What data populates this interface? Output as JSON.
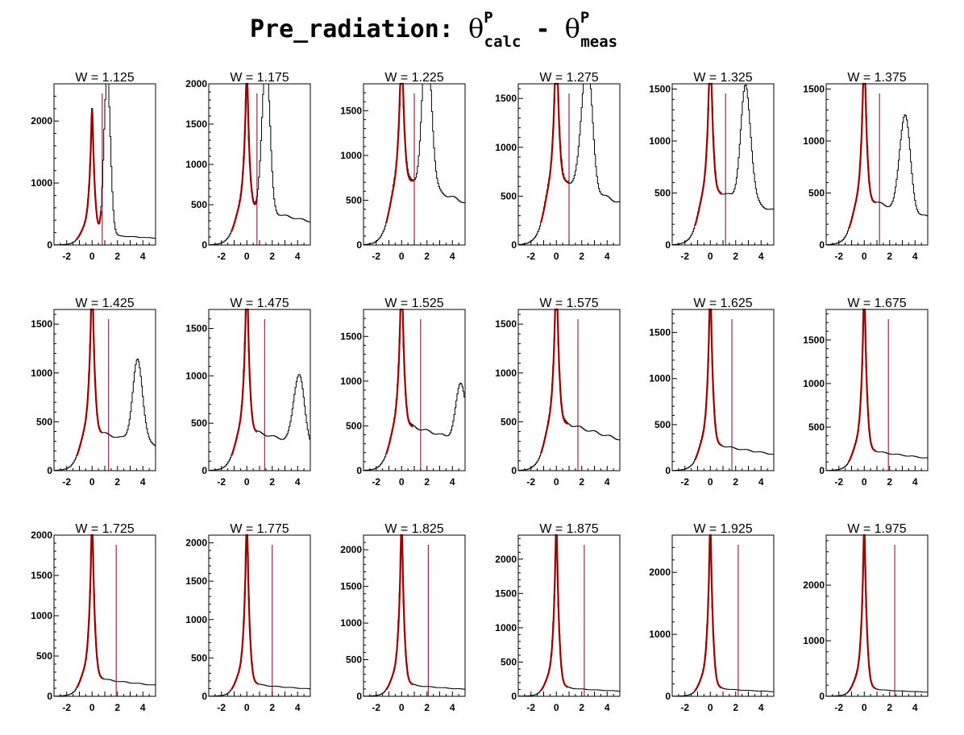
{
  "title": {
    "prefix": "Pre_radiation: ",
    "theta1": "θ",
    "sup1": "P",
    "sub1": "calc",
    "minus": " - ",
    "theta2": "θ",
    "sup2": "P",
    "sub2": "meas"
  },
  "chart_data": [
    {
      "type": "histogram",
      "title": "W = 1.125",
      "xlim": [
        -3,
        5
      ],
      "ylim": [
        0,
        2600
      ],
      "xticks": [
        -2,
        0,
        2,
        4
      ],
      "yticks": [
        0,
        1000,
        2000
      ],
      "cut": 0.8,
      "peak1": 1900,
      "peak2": {
        "x": 1.2,
        "h": 2600,
        "w": 0.25
      },
      "bg": 160,
      "fit_end": 0.7
    },
    {
      "type": "histogram",
      "title": "W = 1.175",
      "xlim": [
        -3,
        5
      ],
      "ylim": [
        0,
        2000
      ],
      "xticks": [
        -2,
        0,
        2,
        4
      ],
      "yticks": [
        0,
        500,
        1000,
        1500,
        2000
      ],
      "cut": 0.8,
      "peak1": 1700,
      "peak2": {
        "x": 1.5,
        "h": 1960,
        "w": 0.3
      },
      "bg": 430,
      "fit_end": 0.8
    },
    {
      "type": "histogram",
      "title": "W = 1.225",
      "xlim": [
        -3,
        5
      ],
      "ylim": [
        0,
        1800
      ],
      "xticks": [
        -2,
        0,
        2,
        4
      ],
      "yticks": [
        0,
        500,
        1000,
        1500
      ],
      "cut": 1.0,
      "peak1": 1650,
      "peak2": {
        "x": 2.0,
        "h": 1750,
        "w": 0.35
      },
      "bg": 700,
      "fit_end": 1.0
    },
    {
      "type": "histogram",
      "title": "W = 1.275",
      "xlim": [
        -3,
        5
      ],
      "ylim": [
        0,
        1650
      ],
      "xticks": [
        -2,
        0,
        2,
        4
      ],
      "yticks": [
        0,
        500,
        1000,
        1500
      ],
      "cut": 1.0,
      "peak1": 1600,
      "peak2": {
        "x": 2.4,
        "h": 1380,
        "w": 0.4
      },
      "bg": 640,
      "fit_end": 1.0
    },
    {
      "type": "histogram",
      "title": "W = 1.325",
      "xlim": [
        -3,
        5
      ],
      "ylim": [
        0,
        1550
      ],
      "xticks": [
        -2,
        0,
        2,
        4
      ],
      "yticks": [
        0,
        500,
        1000,
        1500
      ],
      "cut": 1.2,
      "peak1": 1510,
      "peak2": {
        "x": 2.8,
        "h": 1090,
        "w": 0.4
      },
      "bg": 490,
      "fit_end": 0.9
    },
    {
      "type": "histogram",
      "title": "W = 1.375",
      "xlim": [
        -3,
        5
      ],
      "ylim": [
        0,
        1550
      ],
      "xticks": [
        -2,
        0,
        2,
        4
      ],
      "yticks": [
        0,
        500,
        1000,
        1500
      ],
      "cut": 1.2,
      "peak1": 1510,
      "peak2": {
        "x": 3.2,
        "h": 950,
        "w": 0.4
      },
      "bg": 400,
      "fit_end": 0.9
    },
    {
      "type": "histogram",
      "title": "W = 1.425",
      "xlim": [
        -3,
        5
      ],
      "ylim": [
        0,
        1650
      ],
      "xticks": [
        -2,
        0,
        2,
        4
      ],
      "yticks": [
        0,
        500,
        1000,
        1500
      ],
      "cut": 1.3,
      "peak1": 1580,
      "peak2": {
        "x": 3.6,
        "h": 820,
        "w": 0.4
      },
      "bg": 370,
      "fit_end": 0.8
    },
    {
      "type": "histogram",
      "title": "W = 1.475",
      "xlim": [
        -3,
        5
      ],
      "ylim": [
        0,
        1700
      ],
      "xticks": [
        -2,
        0,
        2,
        4
      ],
      "yticks": [
        0,
        500,
        1000,
        1500
      ],
      "cut": 1.4,
      "peak1": 1650,
      "peak2": {
        "x": 4.1,
        "h": 740,
        "w": 0.4
      },
      "bg": 390,
      "fit_end": 0.8
    },
    {
      "type": "histogram",
      "title": "W = 1.525",
      "xlim": [
        -3,
        5
      ],
      "ylim": [
        0,
        1800
      ],
      "xticks": [
        -2,
        0,
        2,
        4
      ],
      "yticks": [
        0,
        500,
        1000,
        1500
      ],
      "cut": 1.5,
      "peak1": 1760,
      "peak2": {
        "x": 4.7,
        "h": 640,
        "w": 0.4
      },
      "bg": 480,
      "fit_end": 0.9
    },
    {
      "type": "histogram",
      "title": "W = 1.575",
      "xlim": [
        -3,
        5
      ],
      "ylim": [
        0,
        1650
      ],
      "xticks": [
        -2,
        0,
        2,
        4
      ],
      "yticks": [
        0,
        500,
        1000,
        1500
      ],
      "cut": 1.7,
      "peak1": 1600,
      "peak2": null,
      "bg": 470,
      "fit_end": 0.9
    },
    {
      "type": "histogram",
      "title": "W = 1.625",
      "xlim": [
        -3,
        5
      ],
      "ylim": [
        0,
        1750
      ],
      "xticks": [
        -2,
        0,
        2,
        4
      ],
      "yticks": [
        0,
        500,
        1000,
        1500
      ],
      "cut": 1.7,
      "peak1": 1680,
      "peak2": null,
      "bg": 260,
      "fit_end": 0.9
    },
    {
      "type": "histogram",
      "title": "W = 1.675",
      "xlim": [
        -3,
        5
      ],
      "ylim": [
        0,
        1850
      ],
      "xticks": [
        -2,
        0,
        2,
        4
      ],
      "yticks": [
        0,
        500,
        1000,
        1500
      ],
      "cut": 1.9,
      "peak1": 1800,
      "peak2": null,
      "bg": 210,
      "fit_end": 0.9
    },
    {
      "type": "histogram",
      "title": "W = 1.725",
      "xlim": [
        -3,
        5
      ],
      "ylim": [
        0,
        2000
      ],
      "xticks": [
        -2,
        0,
        2,
        4
      ],
      "yticks": [
        0,
        500,
        1000,
        1500,
        2000
      ],
      "cut": 1.9,
      "peak1": 1900,
      "peak2": null,
      "bg": 200,
      "fit_end": 0.9
    },
    {
      "type": "histogram",
      "title": "W = 1.775",
      "xlim": [
        -3,
        5
      ],
      "ylim": [
        0,
        2100
      ],
      "xticks": [
        -2,
        0,
        2,
        4
      ],
      "yticks": [
        0,
        500,
        1000,
        1500,
        2000
      ],
      "cut": 2.0,
      "peak1": 2030,
      "peak2": null,
      "bg": 140,
      "fit_end": 0.9
    },
    {
      "type": "histogram",
      "title": "W = 1.825",
      "xlim": [
        -3,
        5
      ],
      "ylim": [
        0,
        2200
      ],
      "xticks": [
        -2,
        0,
        2,
        4
      ],
      "yticks": [
        0,
        500,
        1000,
        1500,
        2000
      ],
      "cut": 2.1,
      "peak1": 2100,
      "peak2": null,
      "bg": 140,
      "fit_end": 0.9
    },
    {
      "type": "histogram",
      "title": "W = 1.875",
      "xlim": [
        -3,
        5
      ],
      "ylim": [
        0,
        2350
      ],
      "xticks": [
        -2,
        0,
        2,
        4
      ],
      "yticks": [
        0,
        500,
        1000,
        1500,
        2000
      ],
      "cut": 2.2,
      "peak1": 2260,
      "peak2": null,
      "bg": 110,
      "fit_end": 0.9
    },
    {
      "type": "histogram",
      "title": "W = 1.925",
      "xlim": [
        -3,
        5
      ],
      "ylim": [
        0,
        2600
      ],
      "xticks": [
        -2,
        0,
        2,
        4
      ],
      "yticks": [
        0,
        1000,
        2000
      ],
      "cut": 2.2,
      "peak1": 2480,
      "peak2": null,
      "bg": 110,
      "fit_end": 0.9
    },
    {
      "type": "histogram",
      "title": "W = 1.975",
      "xlim": [
        -3,
        5
      ],
      "ylim": [
        0,
        2900
      ],
      "xticks": [
        -2,
        0,
        2,
        4
      ],
      "yticks": [
        0,
        1000,
        2000
      ],
      "cut": 2.4,
      "peak1": 2750,
      "peak2": null,
      "bg": 110,
      "fit_end": 0.9
    }
  ],
  "colors": {
    "histogram": "#000000",
    "fit": "#990000",
    "cut_line": "#770033",
    "frame": "#000000"
  }
}
